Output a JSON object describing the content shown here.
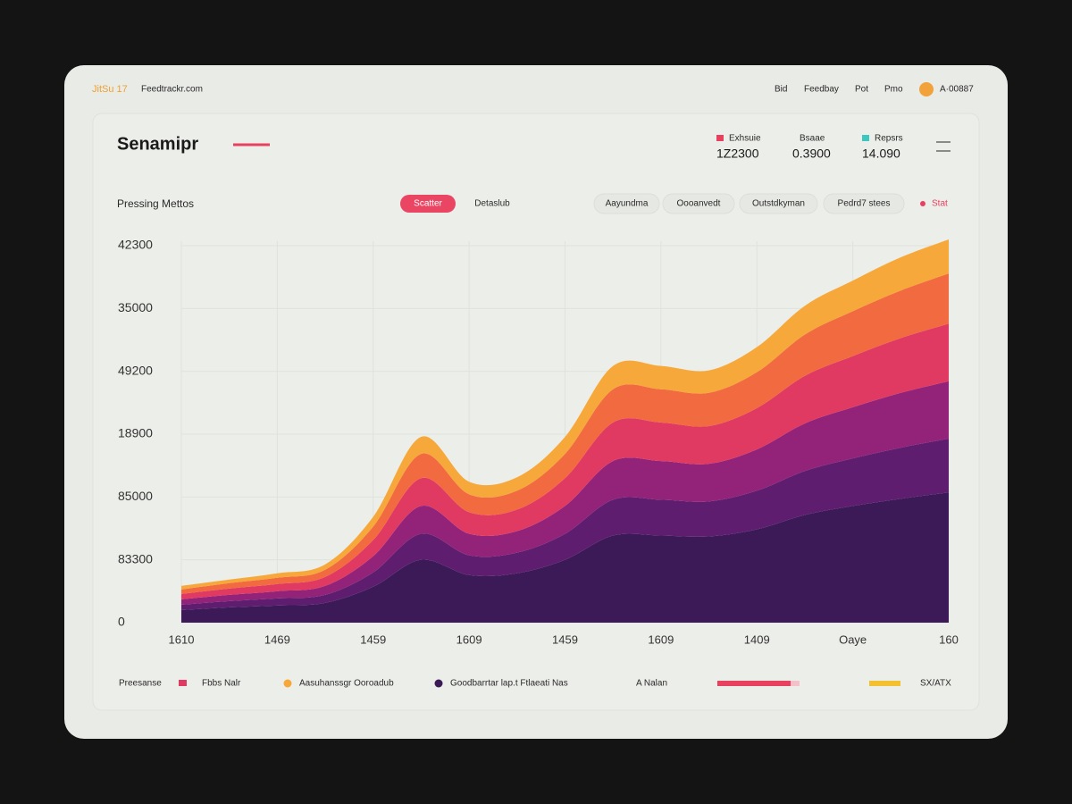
{
  "header": {
    "brand": "JitSu 17",
    "site": "Feedtrackr.com",
    "nav": [
      "Bid",
      "Feedbay",
      "Pot",
      "Pmo"
    ],
    "account": "A·00887"
  },
  "stats": [
    {
      "name": "Exhsuie",
      "value": "1Z2300",
      "color": "#e8405f"
    },
    {
      "name": "Bsaae",
      "value": "0.3900"
    },
    {
      "name": "Repsrs",
      "value": "14.090",
      "color": "#3cc8c0"
    }
  ],
  "controls": {
    "view_buttons": [
      "Scatter",
      "Detaslub"
    ],
    "filters": [
      "Aayundma",
      "Oooanvedt",
      "Outstdkyman",
      "Pedrd7 stees"
    ],
    "status": "Stat"
  },
  "footer": {
    "legend_label": "Preesanse",
    "extra": [
      "A Nalan",
      "SX/ATX"
    ]
  },
  "chart_data": {
    "type": "area",
    "title": "Senamipr",
    "subtitle": "Pressing Mettos",
    "categories": [
      "1610",
      null,
      "1469",
      null,
      "1459",
      null,
      "1609",
      null,
      "1459",
      null,
      "1609",
      null,
      "1409",
      null,
      "Oaye",
      null,
      "160"
    ],
    "ylim": [
      0,
      42000
    ],
    "yticks": [
      0,
      {
        "value": 7000,
        "label": "83300"
      },
      {
        "value": 14000,
        "label": "85000"
      },
      {
        "value": 21000,
        "label": "18900"
      },
      {
        "value": 28000,
        "label": "49200"
      },
      35000,
      {
        "value": 42000,
        "label": "42300"
      }
    ],
    "grid": true,
    "series": [
      {
        "name": "Goodbarrtar lap.t Ftlaeati Nas",
        "color": "#3b1a57",
        "values": [
          1400,
          1700,
          1900,
          2200,
          4000,
          7000,
          5300,
          5500,
          7000,
          9700,
          9700,
          9600,
          10400,
          12000,
          13000,
          13800,
          14500
        ]
      },
      {
        "color": "#5e1d6e",
        "values": [
          600,
          700,
          800,
          900,
          1600,
          2900,
          2200,
          2300,
          2900,
          4000,
          4000,
          3900,
          4300,
          4900,
          5300,
          5700,
          6000
        ]
      },
      {
        "color": "#932279",
        "values": [
          600,
          700,
          800,
          1000,
          1800,
          3100,
          2400,
          2400,
          3100,
          4300,
          4300,
          4200,
          4600,
          5300,
          5700,
          6100,
          6400
        ]
      },
      {
        "name": "Fbbs Nalr",
        "color": "#e03a62",
        "values": [
          600,
          700,
          800,
          1000,
          1800,
          3100,
          2400,
          2400,
          3100,
          4300,
          4300,
          4200,
          4600,
          5300,
          5700,
          6100,
          6400
        ]
      },
      {
        "color": "#f26a3f",
        "values": [
          500,
          600,
          700,
          800,
          1500,
          2700,
          2000,
          2100,
          2700,
          3700,
          3700,
          3700,
          4000,
          4600,
          5000,
          5300,
          5600
        ]
      },
      {
        "name": "Aasuhanssgr Ooroadub",
        "color": "#f7a83a",
        "values": [
          400,
          400,
          500,
          600,
          1100,
          1900,
          1400,
          1500,
          1900,
          2600,
          2600,
          2500,
          2800,
          3200,
          3400,
          3700,
          3800
        ]
      }
    ]
  }
}
